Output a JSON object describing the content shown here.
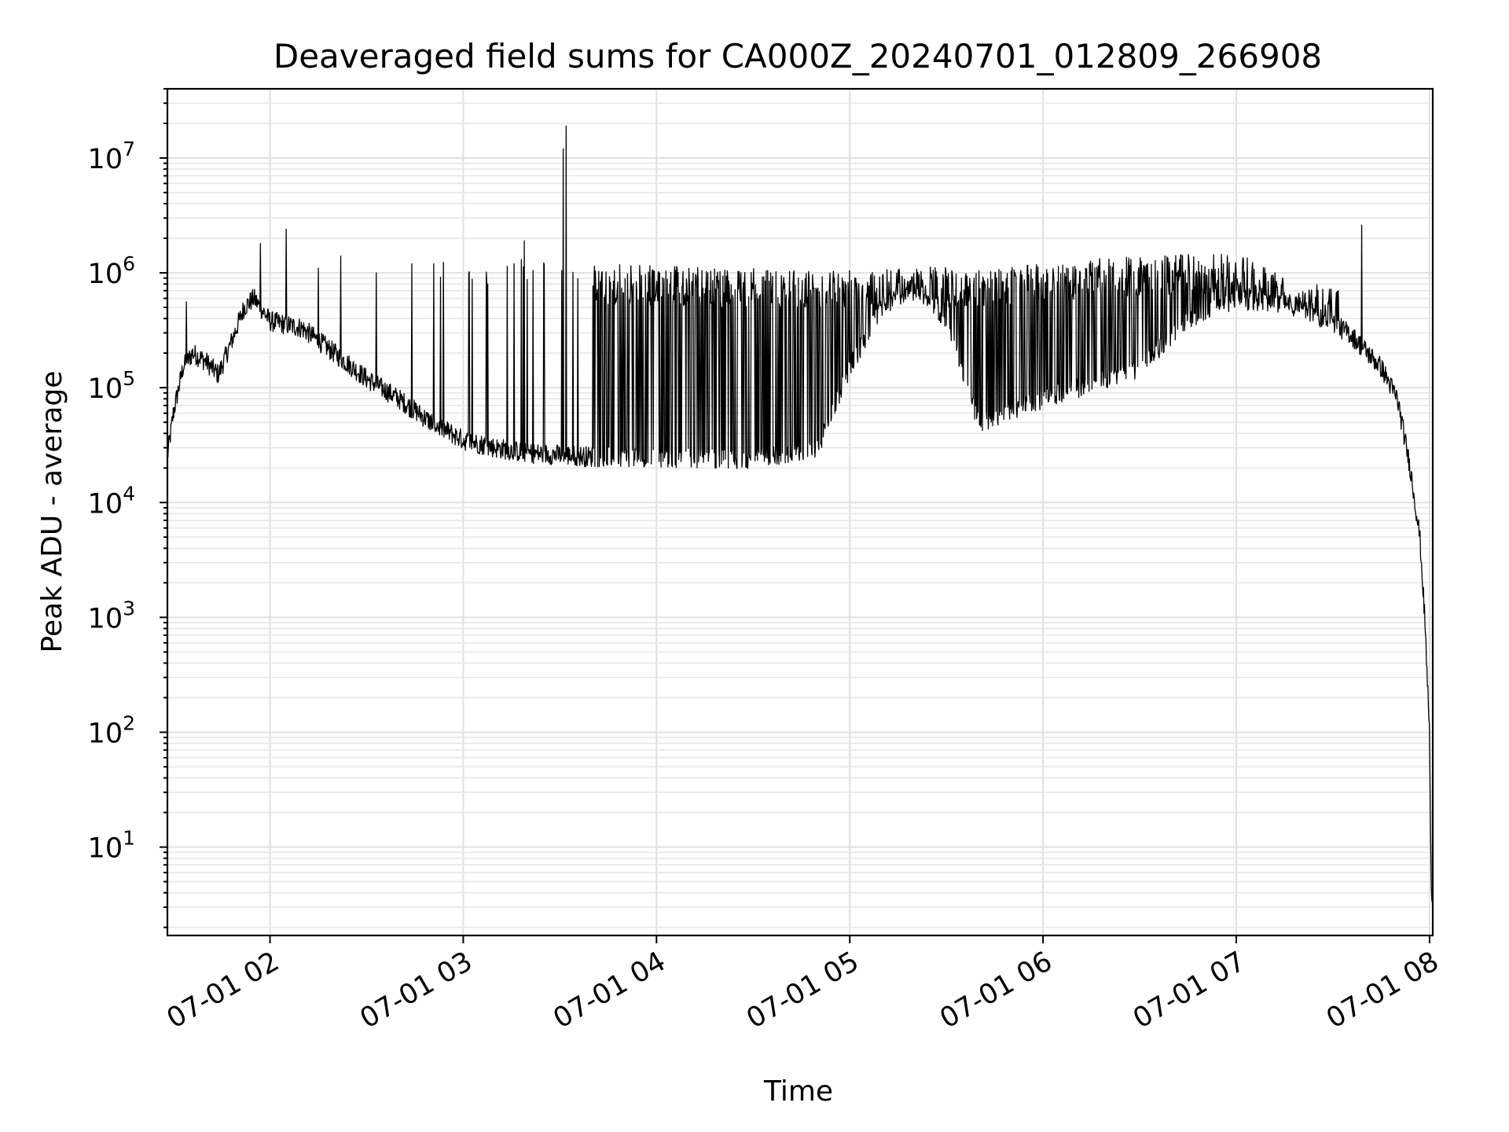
{
  "chart_data": {
    "type": "line",
    "title": "Deaveraged field sums for CA000Z_20240701_012809_266908",
    "xlabel": "Time",
    "ylabel": "Peak ADU - average",
    "yscale": "log",
    "ylim": [
      1.7,
      40000000
    ],
    "xlim": [
      "2024-07-01T01:28:09",
      "2024-07-01T08:01:00"
    ],
    "grid": true,
    "line_color": "#000000",
    "x_ticks": [
      "07-01 02",
      "07-01 03",
      "07-01 04",
      "07-01 05",
      "07-01 06",
      "07-01 07",
      "07-01 08"
    ],
    "x_tick_times": [
      "2024-07-01T02:00:00",
      "2024-07-01T03:00:00",
      "2024-07-01T04:00:00",
      "2024-07-01T05:00:00",
      "2024-07-01T06:00:00",
      "2024-07-01T07:00:00",
      "2024-07-01T08:00:00"
    ],
    "y_ticks": [
      10,
      100,
      1000,
      10000,
      100000,
      1000000,
      10000000
    ],
    "y_tick_labels": [
      {
        "base": "10",
        "exp": "1"
      },
      {
        "base": "10",
        "exp": "2"
      },
      {
        "base": "10",
        "exp": "3"
      },
      {
        "base": "10",
        "exp": "4"
      },
      {
        "base": "10",
        "exp": "5"
      },
      {
        "base": "10",
        "exp": "6"
      },
      {
        "base": "10",
        "exp": "7"
      }
    ],
    "series": [
      {
        "name": "",
        "baseline": [
          [
            "2024-07-01T01:28:09",
            25000
          ],
          [
            "2024-07-01T01:30:00",
            60000
          ],
          [
            "2024-07-01T01:33:00",
            150000
          ],
          [
            "2024-07-01T01:36:00",
            200000
          ],
          [
            "2024-07-01T01:40:00",
            170000
          ],
          [
            "2024-07-01T01:44:00",
            130000
          ],
          [
            "2024-07-01T01:48:00",
            250000
          ],
          [
            "2024-07-01T01:52:00",
            500000
          ],
          [
            "2024-07-01T01:55:00",
            600000
          ],
          [
            "2024-07-01T02:00:00",
            380000
          ],
          [
            "2024-07-01T02:10:00",
            330000
          ],
          [
            "2024-07-01T02:20:00",
            200000
          ],
          [
            "2024-07-01T02:30:00",
            120000
          ],
          [
            "2024-07-01T02:40:00",
            80000
          ],
          [
            "2024-07-01T02:50:00",
            50000
          ],
          [
            "2024-07-01T03:00:00",
            35000
          ],
          [
            "2024-07-01T03:10:00",
            30000
          ],
          [
            "2024-07-01T03:20:00",
            27000
          ],
          [
            "2024-07-01T03:40:00",
            25000
          ],
          [
            "2024-07-01T04:00:00",
            25000
          ],
          [
            "2024-07-01T04:30:00",
            24000
          ],
          [
            "2024-07-01T04:50:00",
            30000
          ],
          [
            "2024-07-01T05:00:00",
            150000
          ],
          [
            "2024-07-01T05:10:00",
            500000
          ],
          [
            "2024-07-01T05:20:00",
            800000
          ],
          [
            "2024-07-01T05:30:00",
            400000
          ],
          [
            "2024-07-01T05:40:00",
            50000
          ],
          [
            "2024-07-01T06:00:00",
            80000
          ],
          [
            "2024-07-01T06:30:00",
            150000
          ],
          [
            "2024-07-01T06:45:00",
            400000
          ],
          [
            "2024-07-01T07:00:00",
            600000
          ],
          [
            "2024-07-01T07:20:00",
            500000
          ],
          [
            "2024-07-01T07:35:00",
            300000
          ],
          [
            "2024-07-01T07:45:00",
            150000
          ],
          [
            "2024-07-01T07:50:00",
            80000
          ],
          [
            "2024-07-01T07:54:00",
            20000
          ],
          [
            "2024-07-01T07:57:00",
            5000
          ],
          [
            "2024-07-01T07:58:30",
            1000
          ],
          [
            "2024-07-01T08:00:00",
            100
          ],
          [
            "2024-07-01T08:00:30",
            4
          ],
          [
            "2024-07-01T08:01:00",
            4
          ]
        ],
        "spikes": [
          [
            "2024-07-01T01:34:00",
            560000
          ],
          [
            "2024-07-01T01:57:00",
            1800000
          ],
          [
            "2024-07-01T02:05:00",
            2400000
          ],
          [
            "2024-07-01T02:15:00",
            1100000
          ],
          [
            "2024-07-01T02:22:00",
            1400000
          ],
          [
            "2024-07-01T02:33:00",
            1000000
          ],
          [
            "2024-07-01T02:44:00",
            1200000
          ],
          [
            "2024-07-01T03:18:00",
            1300000
          ],
          [
            "2024-07-01T03:19:00",
            1900000
          ],
          [
            "2024-07-01T03:31:00",
            12000000
          ],
          [
            "2024-07-01T03:32:00",
            19000000
          ],
          [
            "2024-07-01T07:39:00",
            2600000
          ]
        ],
        "dense_band": [
          [
            "2024-07-01T03:40:00",
            1200000
          ],
          [
            "2024-07-01T04:00:00",
            1150000
          ],
          [
            "2024-07-01T04:30:00",
            1100000
          ],
          [
            "2024-07-01T04:50:00",
            1100000
          ],
          [
            "2024-07-01T05:20:00",
            1150000
          ],
          [
            "2024-07-01T05:40:00",
            1100000
          ],
          [
            "2024-07-01T06:00:00",
            1250000
          ],
          [
            "2024-07-01T06:30:00",
            1400000
          ],
          [
            "2024-07-01T06:45:00",
            1450000
          ],
          [
            "2024-07-01T07:00:00",
            1500000
          ],
          [
            "2024-07-01T07:20:00",
            900000
          ],
          [
            "2024-07-01T07:32:00",
            700000
          ]
        ]
      }
    ]
  }
}
